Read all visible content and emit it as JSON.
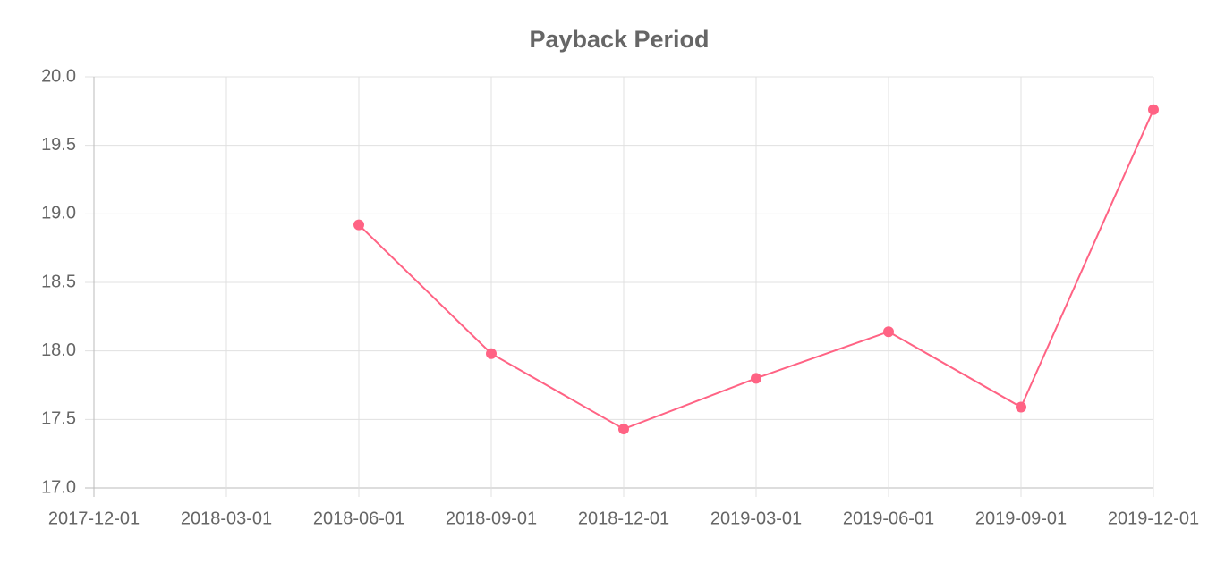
{
  "chart_data": {
    "type": "line",
    "title": "Payback Period",
    "categories": [
      "2017-12-01",
      "2018-03-01",
      "2018-06-01",
      "2018-09-01",
      "2018-12-01",
      "2019-03-01",
      "2019-06-01",
      "2019-09-01",
      "2019-12-01"
    ],
    "series": [
      {
        "color": "#ff6384",
        "values": [
          null,
          null,
          18.92,
          17.98,
          17.43,
          17.8,
          18.14,
          17.59,
          19.76
        ]
      }
    ],
    "ylim": [
      17,
      20
    ],
    "yticks": [
      {
        "value": 17,
        "label": "17.0"
      },
      {
        "value": 17.5,
        "label": "17.5"
      },
      {
        "value": 18,
        "label": "18.0"
      },
      {
        "value": 18.5,
        "label": "18.5"
      },
      {
        "value": 19,
        "label": "19.0"
      },
      {
        "value": 19.5,
        "label": "19.5"
      },
      {
        "value": 20,
        "label": "20.0"
      }
    ],
    "grid": true
  }
}
